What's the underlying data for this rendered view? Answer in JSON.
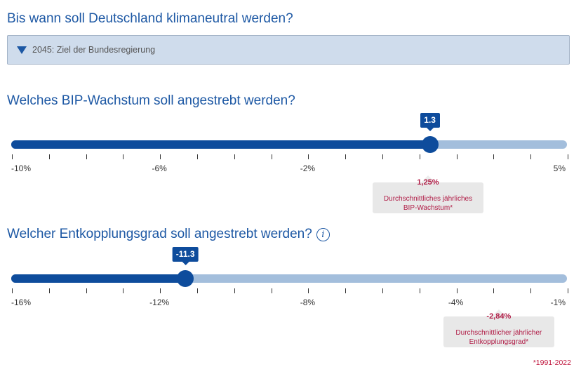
{
  "section1": {
    "title": "Bis wann soll Deutschland klimaneutral werden?",
    "select_value": "2045: Ziel der Bundesregierung"
  },
  "section2": {
    "title": "Welches BIP-Wachstum soll angestrebt werden?",
    "slider": {
      "min": -10,
      "max": 5,
      "value": 1.3,
      "value_label": "1.3",
      "step_marks": 16,
      "labels": [
        {
          "value": -10,
          "text": "-10%"
        },
        {
          "value": -6,
          "text": "-6%"
        },
        {
          "value": -2,
          "text": "-2%"
        },
        {
          "value": 5,
          "text": "5%"
        }
      ]
    },
    "average": {
      "value": 1.25,
      "value_text": "1,25%",
      "text": "Durchschnittliches jährliches BIP-Wachstum*"
    }
  },
  "section3": {
    "title": "Welcher Entkopplungsgrad soll angestrebt werden?",
    "info_icon": "ⓘ",
    "slider": {
      "min": -16,
      "max": -1,
      "value": -11.3,
      "value_label": "-11.3",
      "step_marks": 16,
      "labels": [
        {
          "value": -16,
          "text": "-16%"
        },
        {
          "value": -12,
          "text": "-12%"
        },
        {
          "value": -8,
          "text": "-8%"
        },
        {
          "value": -4,
          "text": "-4%"
        },
        {
          "value": -1,
          "text": "-1%"
        }
      ]
    },
    "average": {
      "value": -2.84,
      "value_text": "-2,84%",
      "text": "Durchschnittlicher jährlicher Entkopplungsgrad*"
    }
  },
  "footnote": "*1991-2022",
  "colors": {
    "heading": "#1d58a4",
    "slider_fill": "#0e4c9c",
    "slider_track": "#a3bedc",
    "note_text": "#b01c46"
  }
}
